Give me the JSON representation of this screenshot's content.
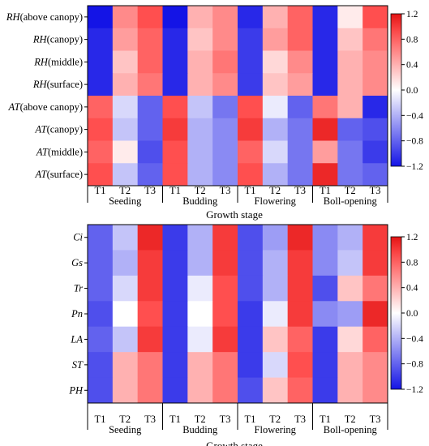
{
  "chart_data": [
    {
      "type": "heatmap",
      "rows": [
        {
          "italic": "RH",
          "suffix": "(above canopy)"
        },
        {
          "italic": "RH",
          "suffix": "(canopy)"
        },
        {
          "italic": "RH",
          "suffix": "(middle)"
        },
        {
          "italic": "RH",
          "suffix": "(surface)"
        },
        {
          "italic": "AT",
          "suffix": "(above canopy)"
        },
        {
          "italic": "AT",
          "suffix": "(canopy)"
        },
        {
          "italic": "AT",
          "suffix": "(middle)"
        },
        {
          "italic": "AT",
          "suffix": "(surface)"
        }
      ],
      "columns": [
        "T1",
        "T2",
        "T3",
        "T1",
        "T2",
        "T3",
        "T1",
        "T2",
        "T3",
        "T1",
        "T2",
        "T3"
      ],
      "groups": [
        "Seeding",
        "Budding",
        "Flowering",
        "Boll-opening"
      ],
      "xlabel": "Growth stage",
      "colorbar": {
        "ticks": [
          "1.2",
          "0.8",
          "0.4",
          "0.0",
          "−0.4",
          "−0.8",
          "−1.2"
        ],
        "range": [
          -1.2,
          1.2
        ]
      },
      "values": [
        [
          -1.2,
          0.6,
          0.9,
          -1.2,
          0.4,
          0.6,
          -1.1,
          0.4,
          0.8,
          -1.1,
          0.1,
          0.9
        ],
        [
          -1.1,
          0.5,
          0.8,
          -1.1,
          0.3,
          0.6,
          -1.0,
          0.5,
          0.8,
          -1.1,
          0.3,
          0.7
        ],
        [
          -1.1,
          0.3,
          0.8,
          -1.1,
          0.4,
          0.7,
          -1.0,
          0.2,
          0.6,
          -1.1,
          0.4,
          0.6
        ],
        [
          -1.1,
          0.4,
          0.7,
          -1.1,
          0.4,
          0.6,
          -1.0,
          0.3,
          0.5,
          -1.1,
          0.4,
          0.6
        ],
        [
          0.8,
          -0.2,
          -0.8,
          0.9,
          -0.3,
          -0.7,
          0.9,
          -0.1,
          -0.8,
          0.7,
          0.4,
          -1.1
        ],
        [
          0.9,
          -0.3,
          -0.8,
          1.0,
          -0.4,
          -0.6,
          1.0,
          -0.4,
          -0.7,
          1.1,
          -0.8,
          -0.9
        ],
        [
          0.8,
          0.1,
          -0.9,
          0.9,
          -0.4,
          -0.6,
          0.8,
          -0.2,
          -0.7,
          0.5,
          -0.7,
          -1.0
        ],
        [
          0.9,
          -0.3,
          -0.8,
          0.9,
          -0.4,
          -0.6,
          0.9,
          -0.4,
          -0.7,
          1.1,
          -0.7,
          -0.8
        ]
      ]
    },
    {
      "type": "heatmap",
      "rows": [
        {
          "italic": "Ci",
          "suffix": ""
        },
        {
          "italic": "Gs",
          "suffix": ""
        },
        {
          "italic": "Tr",
          "suffix": ""
        },
        {
          "italic": "Pn",
          "suffix": ""
        },
        {
          "italic": "LA",
          "suffix": ""
        },
        {
          "italic": "ST",
          "suffix": ""
        },
        {
          "italic": "PH",
          "suffix": ""
        }
      ],
      "columns": [
        "T1",
        "T2",
        "T3",
        "T1",
        "T2",
        "T3",
        "T1",
        "T2",
        "T3",
        "T1",
        "T2",
        "T3"
      ],
      "groups": [
        "Seeding",
        "Budding",
        "Flowering",
        "Boll-opening"
      ],
      "xlabel": "Growth stage",
      "colorbar": {
        "ticks": [
          "1.2",
          "0.8",
          "0.4",
          "0.0",
          "−0.4",
          "−0.8",
          "−1.2"
        ],
        "range": [
          -1.2,
          1.2
        ]
      },
      "values": [
        [
          -0.8,
          -0.3,
          1.1,
          -1.0,
          -0.4,
          1.0,
          -0.9,
          -0.5,
          1.1,
          -0.6,
          -0.4,
          1.0
        ],
        [
          -0.8,
          -0.4,
          1.0,
          -1.0,
          -0.4,
          1.0,
          -0.9,
          -0.4,
          1.0,
          -0.6,
          -0.3,
          1.0
        ],
        [
          -0.8,
          -0.2,
          1.0,
          -1.0,
          -0.1,
          0.9,
          -0.9,
          -0.4,
          1.0,
          -0.9,
          0.3,
          0.7
        ],
        [
          -0.9,
          0.0,
          0.9,
          -1.0,
          0.0,
          0.9,
          -1.0,
          -0.1,
          1.0,
          -0.6,
          -0.5,
          1.1
        ],
        [
          -0.8,
          -0.3,
          1.0,
          -1.0,
          -0.1,
          1.0,
          -1.0,
          0.3,
          0.8,
          -1.0,
          0.2,
          0.8
        ],
        [
          -0.9,
          0.4,
          0.7,
          -1.0,
          0.4,
          0.7,
          -1.0,
          -0.2,
          0.9,
          -1.0,
          0.4,
          0.6
        ],
        [
          -0.9,
          0.4,
          0.7,
          -1.0,
          0.4,
          0.7,
          -0.9,
          0.3,
          0.8,
          -1.0,
          0.4,
          0.6
        ]
      ]
    }
  ]
}
